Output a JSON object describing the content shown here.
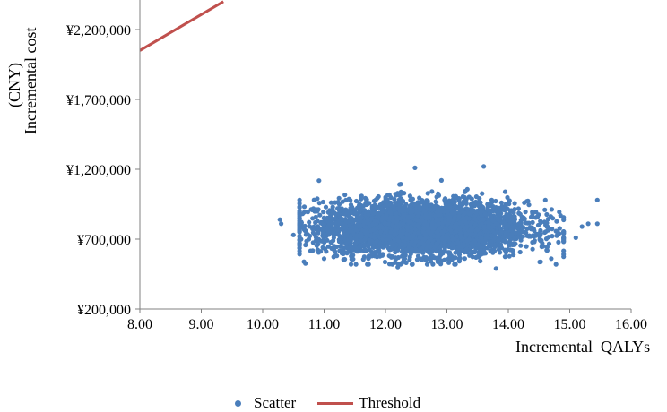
{
  "chart_data": {
    "type": "scatter",
    "xlabel": "Incremental  QALYs",
    "ylabel_lines": [
      "Incremental cost",
      "(CNY)"
    ],
    "xlim": [
      8.0,
      16.0
    ],
    "ylim": [
      200000,
      2400000
    ],
    "x_ticks": [
      "8.00",
      "9.00",
      "10.00",
      "11.00",
      "12.00",
      "13.00",
      "14.00",
      "15.00",
      "16.00"
    ],
    "x_tick_values": [
      8,
      9,
      10,
      11,
      12,
      13,
      14,
      15,
      16
    ],
    "y_ticks": [
      "¥200,000",
      "¥700,000",
      "¥1,200,000",
      "¥1,700,000",
      "¥2,200,000"
    ],
    "y_tick_values": [
      200000,
      700000,
      1200000,
      1700000,
      2200000
    ],
    "grid": false,
    "legend_position": "bottom",
    "series": [
      {
        "name": "Scatter",
        "kind": "scatter",
        "color": "#4a7ebb",
        "distribution": {
          "count": 4000,
          "x_mean": 12.6,
          "x_sd": 0.85,
          "y_mean": 780000,
          "y_sd": 95000
        },
        "outliers": [
          {
            "x": 10.3,
            "y": 810000
          },
          {
            "x": 10.28,
            "y": 840000
          },
          {
            "x": 10.5,
            "y": 730000
          },
          {
            "x": 15.45,
            "y": 980000
          },
          {
            "x": 15.45,
            "y": 810000
          },
          {
            "x": 15.3,
            "y": 810000
          },
          {
            "x": 15.2,
            "y": 790000
          },
          {
            "x": 15.1,
            "y": 710000
          },
          {
            "x": 14.85,
            "y": 870000
          },
          {
            "x": 13.6,
            "y": 1220000
          },
          {
            "x": 12.48,
            "y": 1210000
          },
          {
            "x": 14.7,
            "y": 560000
          },
          {
            "x": 13.8,
            "y": 490000
          },
          {
            "x": 12.2,
            "y": 500000
          },
          {
            "x": 11.0,
            "y": 560000
          }
        ]
      },
      {
        "name": "Threshold",
        "kind": "line",
        "color": "#c0504d",
        "points": [
          {
            "x": 8.0,
            "y": 2050000
          },
          {
            "x": 9.36,
            "y": 2400000
          }
        ]
      }
    ]
  }
}
